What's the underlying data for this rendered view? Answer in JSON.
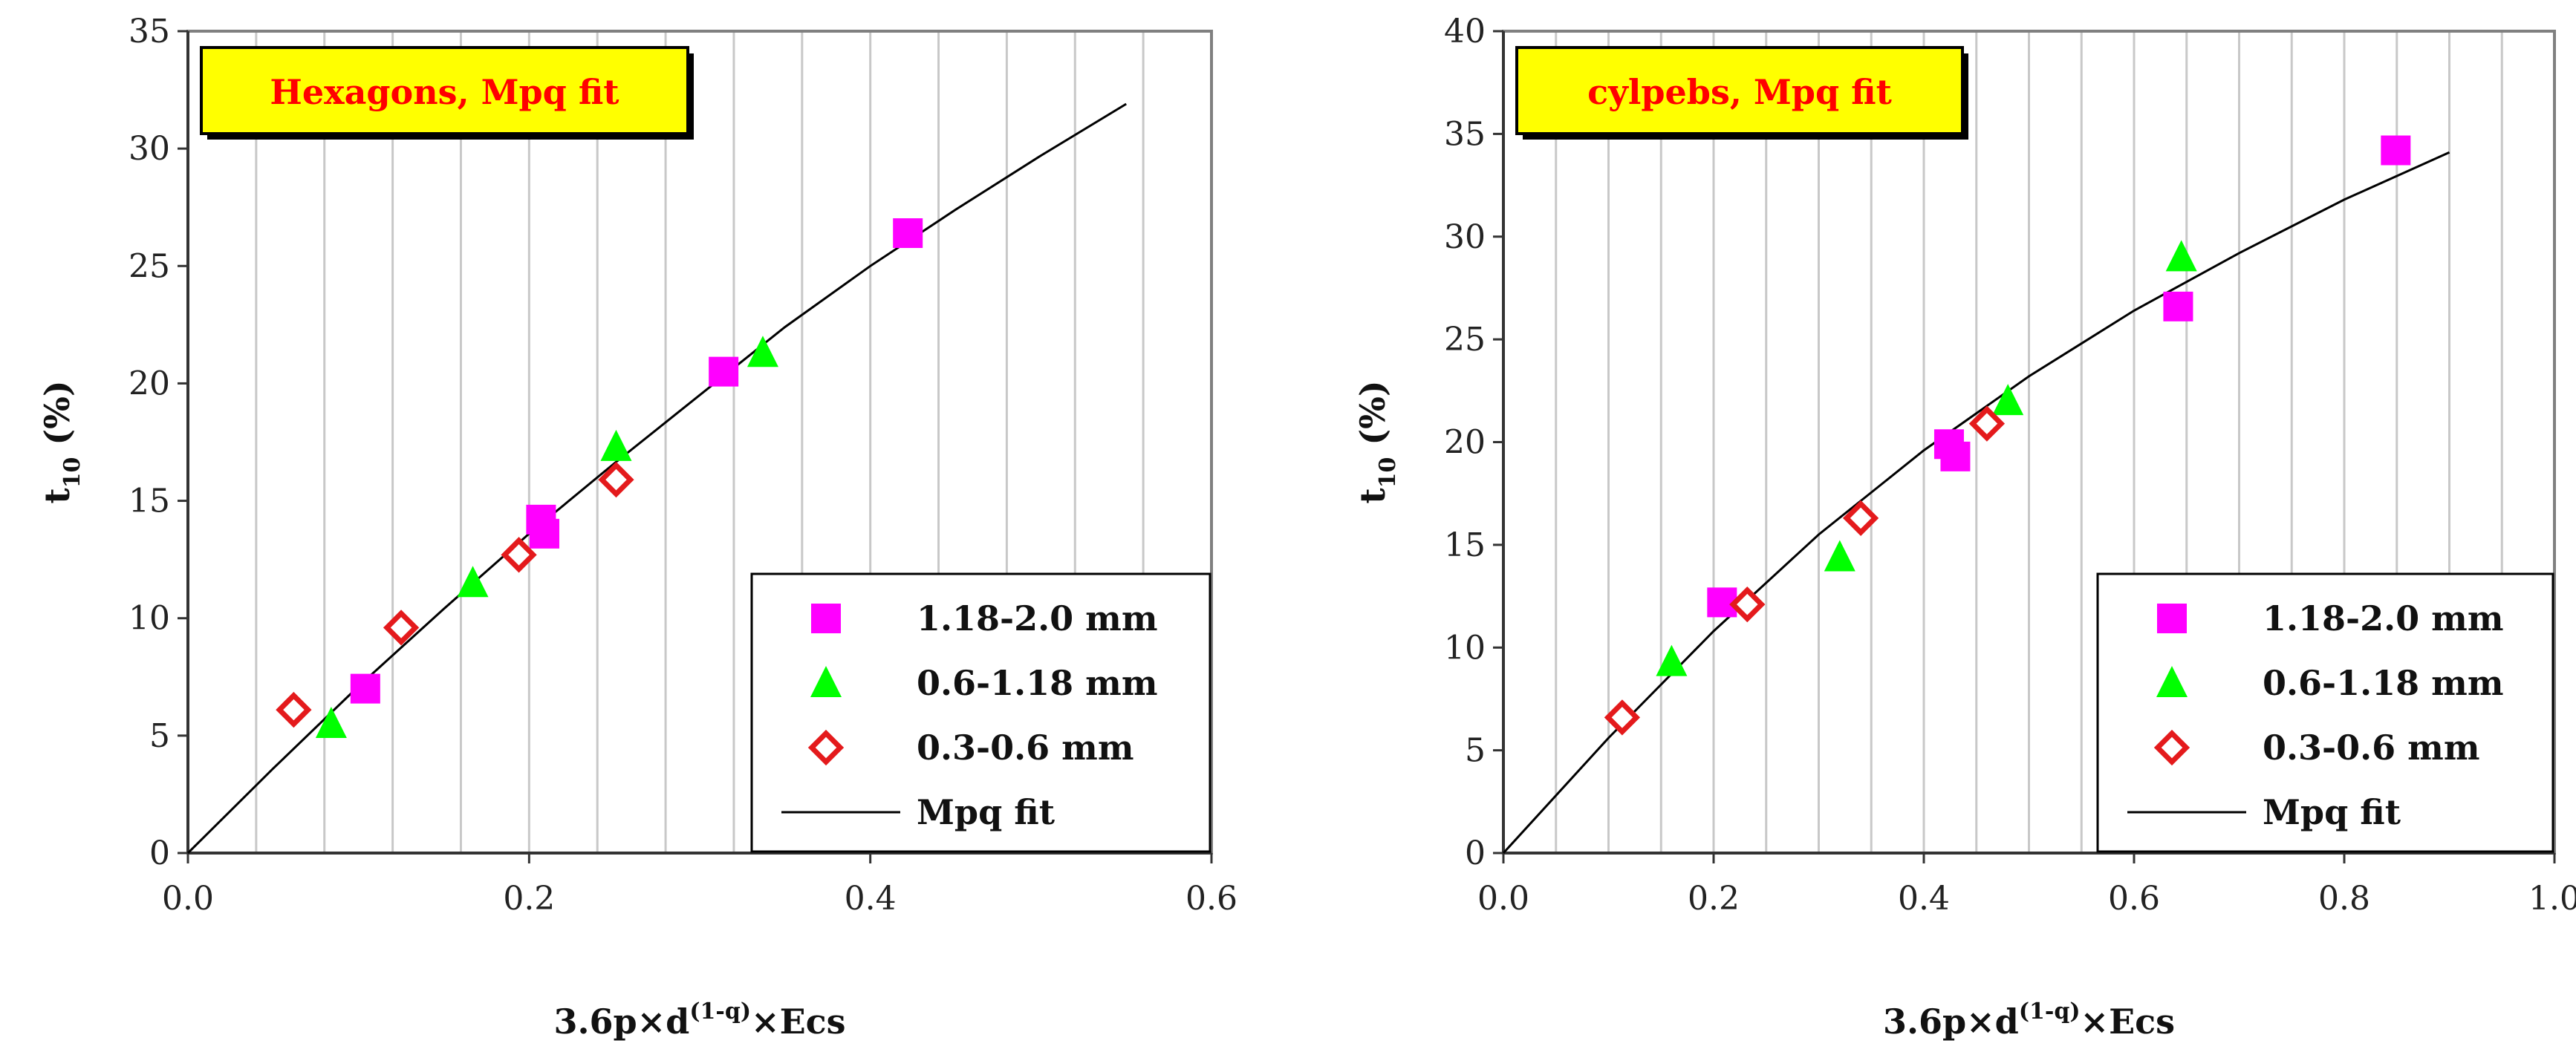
{
  "colors": {
    "series_sq": "#ff00ff",
    "series_tri": "#00ff00",
    "series_dia": "#e41a1c",
    "fit": "#000000",
    "title_bg": "#ffff00",
    "title_text": "#ff0000",
    "grid": "#c8c8c8",
    "frame": "#808080"
  },
  "chart_data": [
    {
      "type": "scatter",
      "title": "Hexagons, Mpq fit",
      "xlabel": "3.6p×d",
      "xlabel_exponent": "(1-q)",
      "xlabel_suffix": "×Ecs",
      "ylabel": "t",
      "ylabel_subscript": "10",
      "ylabel_suffix": " (%)",
      "xlim": [
        0,
        0.6
      ],
      "ylim": [
        0,
        35
      ],
      "xticks": [
        0.0,
        0.2,
        0.4,
        0.6
      ],
      "xtick_labels": [
        "0.0",
        "0.2",
        "0.4",
        "0.6"
      ],
      "yticks": [
        0,
        5,
        10,
        15,
        20,
        25,
        30,
        35
      ],
      "ytick_labels": [
        "0",
        "5",
        "10",
        "15",
        "20",
        "25",
        "30",
        "35"
      ],
      "x_grid_step": 0.04,
      "legend_position": "bottom-right",
      "series": [
        {
          "name": "1.18-2.0 mm",
          "marker": "square",
          "x": [
            0.104,
            0.207,
            0.209,
            0.314,
            0.422
          ],
          "y": [
            7.0,
            14.2,
            13.6,
            20.5,
            26.4
          ]
        },
        {
          "name": "0.6-1.18 mm",
          "marker": "triangle",
          "x": [
            0.084,
            0.167,
            0.251,
            0.337
          ],
          "y": [
            5.5,
            11.5,
            17.3,
            21.3
          ]
        },
        {
          "name": "0.3-0.6 mm",
          "marker": "diamond",
          "x": [
            0.062,
            0.125,
            0.194,
            0.251
          ],
          "y": [
            6.1,
            9.6,
            12.7,
            15.9
          ]
        },
        {
          "name": "Mpq fit",
          "marker": "line",
          "x": [
            0,
            0.05,
            0.1,
            0.15,
            0.2,
            0.25,
            0.3,
            0.35,
            0.4,
            0.45,
            0.5,
            0.55
          ],
          "y": [
            0,
            3.6,
            7.1,
            10.4,
            13.6,
            16.6,
            19.5,
            22.4,
            25.0,
            27.4,
            29.7,
            31.9
          ]
        }
      ]
    },
    {
      "type": "scatter",
      "title": "cylpebs, Mpq fit",
      "xlabel": "3.6p×d",
      "xlabel_exponent": "(1-q)",
      "xlabel_suffix": "×Ecs",
      "ylabel": "t",
      "ylabel_subscript": "10",
      "ylabel_suffix": " (%)",
      "xlim": [
        0,
        1.0
      ],
      "ylim": [
        0,
        40
      ],
      "xticks": [
        0.0,
        0.2,
        0.4,
        0.6,
        0.8,
        1.0
      ],
      "xtick_labels": [
        "0.0",
        "0.2",
        "0.4",
        "0.6",
        "0.8",
        "1.0"
      ],
      "yticks": [
        0,
        5,
        10,
        15,
        20,
        25,
        30,
        35,
        40
      ],
      "ytick_labels": [
        "0",
        "5",
        "10",
        "15",
        "20",
        "25",
        "30",
        "35",
        "40"
      ],
      "x_grid_step": 0.05,
      "legend_position": "bottom-right",
      "series": [
        {
          "name": "1.18-2.0 mm",
          "marker": "square",
          "x": [
            0.208,
            0.424,
            0.43,
            0.642,
            0.849
          ],
          "y": [
            12.2,
            19.9,
            19.3,
            26.6,
            34.2
          ]
        },
        {
          "name": "0.6-1.18 mm",
          "marker": "triangle",
          "x": [
            0.16,
            0.32,
            0.48,
            0.645
          ],
          "y": [
            9.3,
            14.4,
            22.0,
            29.0
          ]
        },
        {
          "name": "0.3-0.6 mm",
          "marker": "diamond",
          "x": [
            0.113,
            0.232,
            0.34,
            0.46
          ],
          "y": [
            6.6,
            12.1,
            16.3,
            20.9
          ]
        },
        {
          "name": "Mpq fit",
          "marker": "line",
          "x": [
            0,
            0.1,
            0.2,
            0.3,
            0.4,
            0.5,
            0.6,
            0.7,
            0.8,
            0.9
          ],
          "y": [
            0,
            5.6,
            10.8,
            15.5,
            19.6,
            23.2,
            26.4,
            29.2,
            31.8,
            34.1
          ]
        }
      ]
    }
  ]
}
